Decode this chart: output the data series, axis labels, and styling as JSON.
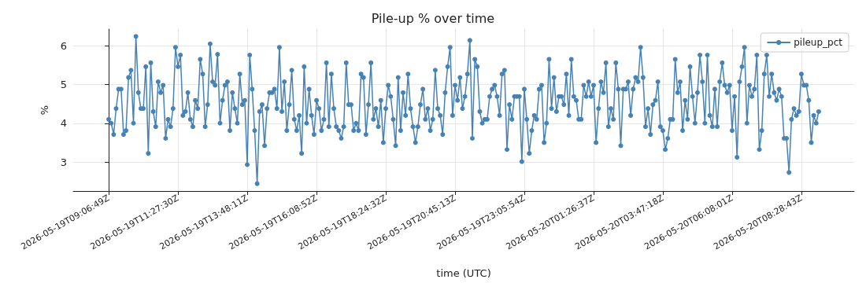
{
  "chart_data": {
    "type": "line",
    "title": "Pile-up % over time",
    "xlabel": "time (UTC)",
    "ylabel": "%",
    "categories": [
      "2026-05-19T09:06:49Z",
      null,
      null,
      null,
      null,
      null,
      null,
      null,
      null,
      null,
      null,
      null,
      null,
      null,
      null,
      null,
      null,
      null,
      null,
      null,
      null,
      null,
      null,
      null,
      null,
      null,
      null,
      null,
      "2026-05-19T11:27:30Z",
      null,
      null,
      null,
      null,
      null,
      null,
      null,
      null,
      null,
      null,
      null,
      null,
      null,
      null,
      null,
      null,
      null,
      null,
      null,
      null,
      null,
      null,
      null,
      null,
      null,
      null,
      null,
      "2026-05-19T13:48:11Z",
      null,
      null,
      null,
      null,
      null,
      null,
      null,
      null,
      null,
      null,
      null,
      null,
      null,
      null,
      null,
      null,
      null,
      null,
      null,
      null,
      null,
      null,
      null,
      null,
      null,
      null,
      null,
      "2026-05-19T16:08:52Z",
      null,
      null,
      null,
      null,
      null,
      null,
      null,
      null,
      null,
      null,
      null,
      null,
      null,
      null,
      null,
      null,
      null,
      null,
      null,
      null,
      null,
      null,
      null,
      null,
      null,
      null,
      null,
      "2026-05-19T18:24:32Z",
      null,
      null,
      null,
      null,
      null,
      null,
      null,
      null,
      null,
      null,
      null,
      null,
      null,
      null,
      null,
      null,
      null,
      null,
      null,
      null,
      null,
      null,
      null,
      null,
      null,
      null,
      null,
      "2026-05-19T20:45:13Z",
      null,
      null,
      null,
      null,
      null,
      null,
      null,
      null,
      null,
      null,
      null,
      null,
      null,
      null,
      null,
      null,
      null,
      null,
      null,
      null,
      null,
      null,
      null,
      null,
      null,
      null,
      null,
      "2026-05-19T23:05:54Z",
      null,
      null,
      null,
      null,
      null,
      null,
      null,
      null,
      null,
      null,
      null,
      null,
      null,
      null,
      null,
      null,
      null,
      null,
      null,
      null,
      null,
      null,
      null,
      null,
      null,
      null,
      null,
      "2026-05-20T01:26:37Z",
      null,
      null,
      null,
      null,
      null,
      null,
      null,
      null,
      null,
      null,
      null,
      null,
      null,
      null,
      null,
      null,
      null,
      null,
      null,
      null,
      null,
      null,
      null,
      null,
      null,
      null,
      null,
      "2026-05-20T03:47:18Z",
      null,
      null,
      null,
      null,
      null,
      null,
      null,
      null,
      null,
      null,
      null,
      null,
      null,
      null,
      null,
      null,
      null,
      null,
      null,
      null,
      null,
      null,
      null,
      null,
      null,
      null,
      null,
      "2026-05-20T06:08:01Z",
      null,
      null,
      null,
      null,
      null,
      null,
      null,
      null,
      null,
      null,
      null,
      null,
      null,
      null,
      null,
      null,
      null,
      null,
      null,
      null,
      null,
      null,
      null,
      null,
      null,
      null,
      null,
      "2026-05-20T08:28:43Z",
      null,
      null,
      null,
      null,
      null,
      null,
      null
    ],
    "series": [
      {
        "name": "pileup_pct",
        "color": "#4682b4",
        "values": [
          4.1,
          4.0,
          3.71,
          4.38,
          4.88,
          4.88,
          3.71,
          3.81,
          5.18,
          5.37,
          4.0,
          6.24,
          4.79,
          4.38,
          4.38,
          5.46,
          3.22,
          5.56,
          4.3,
          3.91,
          5.07,
          4.79,
          4.98,
          3.61,
          4.1,
          3.91,
          4.38,
          5.96,
          5.46,
          5.76,
          4.2,
          4.3,
          4.79,
          4.1,
          3.91,
          4.59,
          4.38,
          5.65,
          5.27,
          3.91,
          4.48,
          6.05,
          5.07,
          4.98,
          5.78,
          4.0,
          4.59,
          4.98,
          5.07,
          3.81,
          4.79,
          4.38,
          4.0,
          5.27,
          4.48,
          4.59,
          2.93,
          5.76,
          4.88,
          3.81,
          2.44,
          4.3,
          4.48,
          3.42,
          4.38,
          4.79,
          4.79,
          4.88,
          4.38,
          5.96,
          4.3,
          5.07,
          3.81,
          4.48,
          5.37,
          4.1,
          3.81,
          4.2,
          3.22,
          5.46,
          4.0,
          4.88,
          4.2,
          3.71,
          4.59,
          4.38,
          3.81,
          4.1,
          5.56,
          3.91,
          5.27,
          4.38,
          3.91,
          3.81,
          3.61,
          3.91,
          5.56,
          4.48,
          4.48,
          3.81,
          4.0,
          3.81,
          5.27,
          5.18,
          3.71,
          4.48,
          5.56,
          4.1,
          4.38,
          3.91,
          4.59,
          3.5,
          4.38,
          4.98,
          4.69,
          4.1,
          3.42,
          5.18,
          3.81,
          4.79,
          4.2,
          5.27,
          4.38,
          3.91,
          3.5,
          3.91,
          4.48,
          4.88,
          4.1,
          4.38,
          3.81,
          4.1,
          5.37,
          4.38,
          4.2,
          3.71,
          4.79,
          5.46,
          5.96,
          4.2,
          4.98,
          4.59,
          5.18,
          4.38,
          4.69,
          5.27,
          6.14,
          3.61,
          5.65,
          5.46,
          4.3,
          4.0,
          4.1,
          4.1,
          4.69,
          4.88,
          4.98,
          4.69,
          4.2,
          5.27,
          5.37,
          3.32,
          4.48,
          4.1,
          4.69,
          4.69,
          4.69,
          3.01,
          4.88,
          4.1,
          3.22,
          3.81,
          4.2,
          4.1,
          4.88,
          4.98,
          3.5,
          4.0,
          5.65,
          4.38,
          5.18,
          4.3,
          4.69,
          4.69,
          4.48,
          5.27,
          4.2,
          5.65,
          4.69,
          4.59,
          4.1,
          4.1,
          4.98,
          4.69,
          5.07,
          4.69,
          4.98,
          3.5,
          4.38,
          5.07,
          4.79,
          5.56,
          3.91,
          4.38,
          4.1,
          5.56,
          4.88,
          3.42,
          4.88,
          4.88,
          5.07,
          4.2,
          4.88,
          5.18,
          5.07,
          5.96,
          5.18,
          3.91,
          4.38,
          3.71,
          4.48,
          4.59,
          5.07,
          3.91,
          3.81,
          3.32,
          3.61,
          4.1,
          4.1,
          5.65,
          4.79,
          5.07,
          3.81,
          4.59,
          4.1,
          5.46,
          4.69,
          4.0,
          4.79,
          5.76,
          5.07,
          4.0,
          5.76,
          4.2,
          3.91,
          4.88,
          3.91,
          5.07,
          5.56,
          4.98,
          4.79,
          4.98,
          3.81,
          4.69,
          3.12,
          5.07,
          5.46,
          5.96,
          4.0,
          4.98,
          4.69,
          4.88,
          5.76,
          3.32,
          3.81,
          5.27,
          5.76,
          4.69,
          5.27,
          4.79,
          4.59,
          4.88,
          4.69,
          3.61,
          3.61,
          2.73,
          4.1,
          4.38,
          4.2,
          4.3,
          5.27,
          4.98,
          4.98,
          4.59,
          3.5,
          4.2,
          4.0,
          4.3
        ]
      }
    ],
    "ylim": [
      2.25,
      6.43
    ],
    "yticks": [
      3,
      4,
      5,
      6
    ],
    "grid": true,
    "legend": "top right",
    "marker": "circle",
    "line_style": "solid"
  }
}
